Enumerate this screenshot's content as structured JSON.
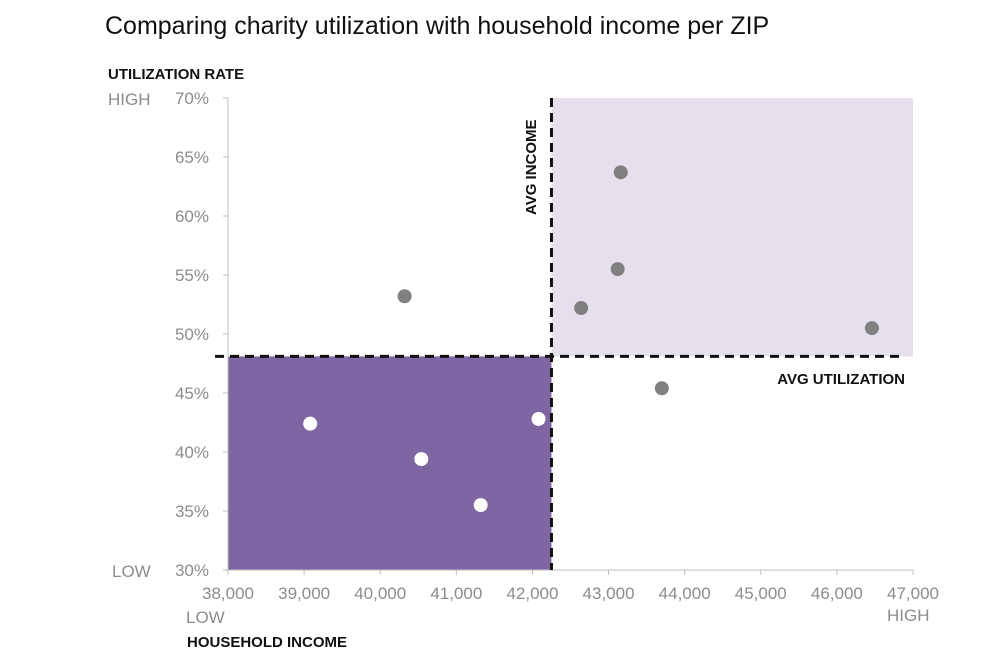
{
  "chart_data": {
    "type": "scatter",
    "title": "Comparing charity utilization with household income per ZIP",
    "xlabel": "HOUSEHOLD INCOME",
    "ylabel": "UTILIZATION RATE",
    "x_low_label": "LOW",
    "x_high_label": "HIGH",
    "y_low_label": "LOW",
    "y_high_label": "HIGH",
    "xlim": [
      38000,
      47000
    ],
    "ylim": [
      30,
      70
    ],
    "x_ticks": [
      "38,000",
      "39,000",
      "40,000",
      "41,000",
      "42,000",
      "43,000",
      "44,000",
      "45,000",
      "46,000",
      "47,000"
    ],
    "y_ticks": [
      "30%",
      "35%",
      "40%",
      "45%",
      "50%",
      "55%",
      "60%",
      "65%",
      "70%"
    ],
    "avg_income": 42250,
    "avg_income_label": "AVG INCOME",
    "avg_utilization": 48.1,
    "avg_utilization_label": "AVG UTILIZATION",
    "grid": false,
    "points": [
      {
        "x": 39080,
        "y": 42.4,
        "group": "low-income-low-utilization"
      },
      {
        "x": 40540,
        "y": 39.4,
        "group": "low-income-low-utilization"
      },
      {
        "x": 41320,
        "y": 35.5,
        "group": "low-income-low-utilization"
      },
      {
        "x": 42080,
        "y": 42.8,
        "group": "low-income-low-utilization"
      },
      {
        "x": 40320,
        "y": 53.2,
        "group": "other"
      },
      {
        "x": 42640,
        "y": 52.2,
        "group": "other"
      },
      {
        "x": 43120,
        "y": 55.5,
        "group": "other"
      },
      {
        "x": 43160,
        "y": 63.7,
        "group": "other"
      },
      {
        "x": 46460,
        "y": 50.5,
        "group": "other"
      },
      {
        "x": 43700,
        "y": 45.4,
        "group": "other"
      }
    ],
    "colors": {
      "low_low_region": "#7d66a1",
      "high_high_region": "#e6e0ec",
      "point_highlight": "#ffffff",
      "point_default": "#808080",
      "axis": "#bfbfbf",
      "tick_text": "#8c8c8c"
    }
  }
}
